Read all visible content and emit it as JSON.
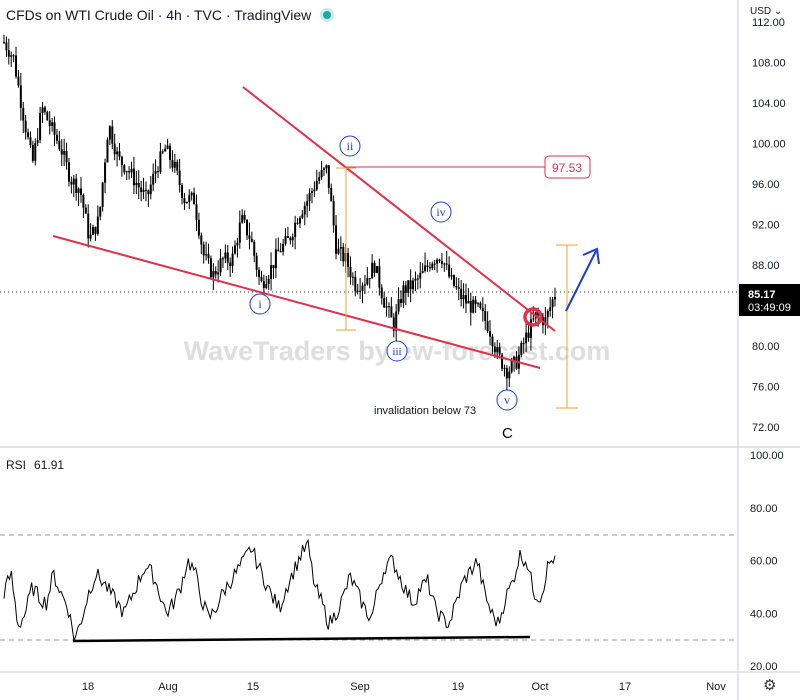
{
  "header": {
    "title": "CFDs on WTI Crude Oil · 4h · TVC · TradingView"
  },
  "currency_label": "USD",
  "watermark": "WaveTraders by ew-forecast.com",
  "price_tag": {
    "price": "85.17",
    "countdown": "03:49:09"
  },
  "level_label": "97.53",
  "invalidation_note": "invalidation below 73",
  "rsi": {
    "label": "RSI",
    "value": "61.91"
  },
  "colors": {
    "candle": "#000000",
    "trendline": "#e0314b",
    "wave_label": "#1e3bd8",
    "measure": "#f0a030",
    "arrow": "#1e3bd8",
    "rsi_line": "#000000",
    "grid_dashed": "#9a9a9a"
  },
  "chart_data": [
    {
      "type": "candlestick",
      "title": "CFDs on WTI Crude Oil · 4h · TVC · TradingView",
      "y_ticks": [
        "112.00",
        "108.00",
        "104.00",
        "100.00",
        "96.00",
        "92.00",
        "88.00",
        "84.00",
        "80.00",
        "76.00",
        "72.00"
      ],
      "x_ticks": [
        "18",
        "Aug",
        "15",
        "Sep",
        "19",
        "Oct",
        "17",
        "Nov"
      ],
      "ylim": [
        69.5,
        113.5
      ],
      "current_price": 85.17,
      "approx_closes": [
        110,
        108.5,
        103,
        98,
        103.5,
        101.5,
        99.5,
        96.5,
        95.5,
        90.5,
        92.5,
        102,
        98.5,
        97.5,
        96,
        94.5,
        97.5,
        99.5,
        97.5,
        94.5,
        94.5,
        89,
        87,
        88.5,
        88.5,
        92.5,
        90.5,
        86,
        87.5,
        89.5,
        90.5,
        93,
        94.5,
        96.5,
        97.5,
        89.5,
        88.5,
        86,
        86.5,
        88,
        84.5,
        82,
        85.5,
        86,
        87,
        88.5,
        89,
        86.5,
        85,
        84,
        83.5,
        82,
        79,
        77.5,
        78.5,
        81,
        83,
        82.5,
        85.17
      ],
      "annotations": {
        "waves": [
          "i",
          "ii",
          "iii",
          "iv",
          "v",
          "C"
        ],
        "level": 97.53,
        "invalidation": "invalidation below 73"
      }
    },
    {
      "type": "line",
      "title": "RSI",
      "current_value": 61.91,
      "y_ticks": [
        "100.00",
        "80.00",
        "60.00",
        "40.00",
        "20.00"
      ],
      "ylim": [
        15,
        100
      ],
      "bands": [
        70,
        30
      ],
      "approx_values": [
        48,
        55,
        35,
        40,
        50,
        46,
        44,
        55,
        48,
        43,
        30,
        38,
        48,
        55,
        52,
        48,
        44,
        40,
        46,
        52,
        58,
        55,
        48,
        40,
        44,
        50,
        60,
        56,
        45,
        38,
        42,
        48,
        52,
        56,
        60,
        65,
        58,
        52,
        46,
        42,
        50,
        56,
        62,
        66,
        50,
        44,
        36,
        40,
        46,
        54,
        48,
        42,
        38,
        50,
        58,
        60,
        54,
        48,
        44,
        50,
        52,
        42,
        38,
        36,
        44,
        52,
        56,
        60,
        48,
        40,
        36,
        46,
        52,
        62,
        60,
        48,
        46,
        58,
        61.91
      ]
    }
  ]
}
